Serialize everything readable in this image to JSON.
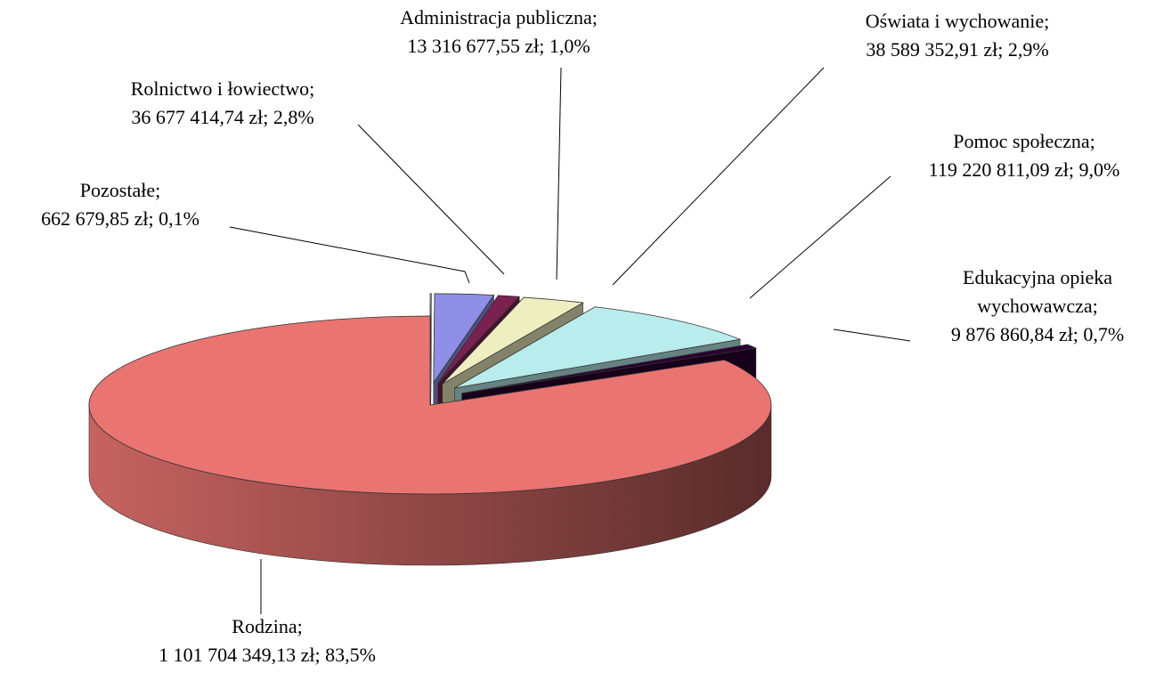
{
  "chart_data": {
    "type": "pie",
    "three_d": true,
    "categories": [
      "Pozostałe;",
      "Rolnictwo i łowiectwo;",
      "Administracja publiczna;",
      "Oświata i wychowanie;",
      "Pomoc społeczna;",
      "Edukacyjna opieka wychowawcza;",
      "Rodzina;"
    ],
    "values": [
      662679.85,
      36677414.74,
      13316677.55,
      38589352.91,
      119220811.09,
      9876860.84,
      1101704349.13
    ],
    "value_labels": [
      "662 679,85 zł; 0,1%",
      "36 677 414,74 zł; 2,8%",
      "13 316 677,55 zł; 1,0%",
      "38 589 352,91 zł; 2,9%",
      "119 220 811,09 zł; 9,0%",
      "9 876 860,84 zł; 0,7%",
      "1 101 704 349,13 zł; 83,5%"
    ],
    "colors": [
      "#ffffff",
      "#8f8fe8",
      "#7b2150",
      "#eeeec0",
      "#b9ecec",
      "#2a0030",
      "#e97471"
    ]
  }
}
